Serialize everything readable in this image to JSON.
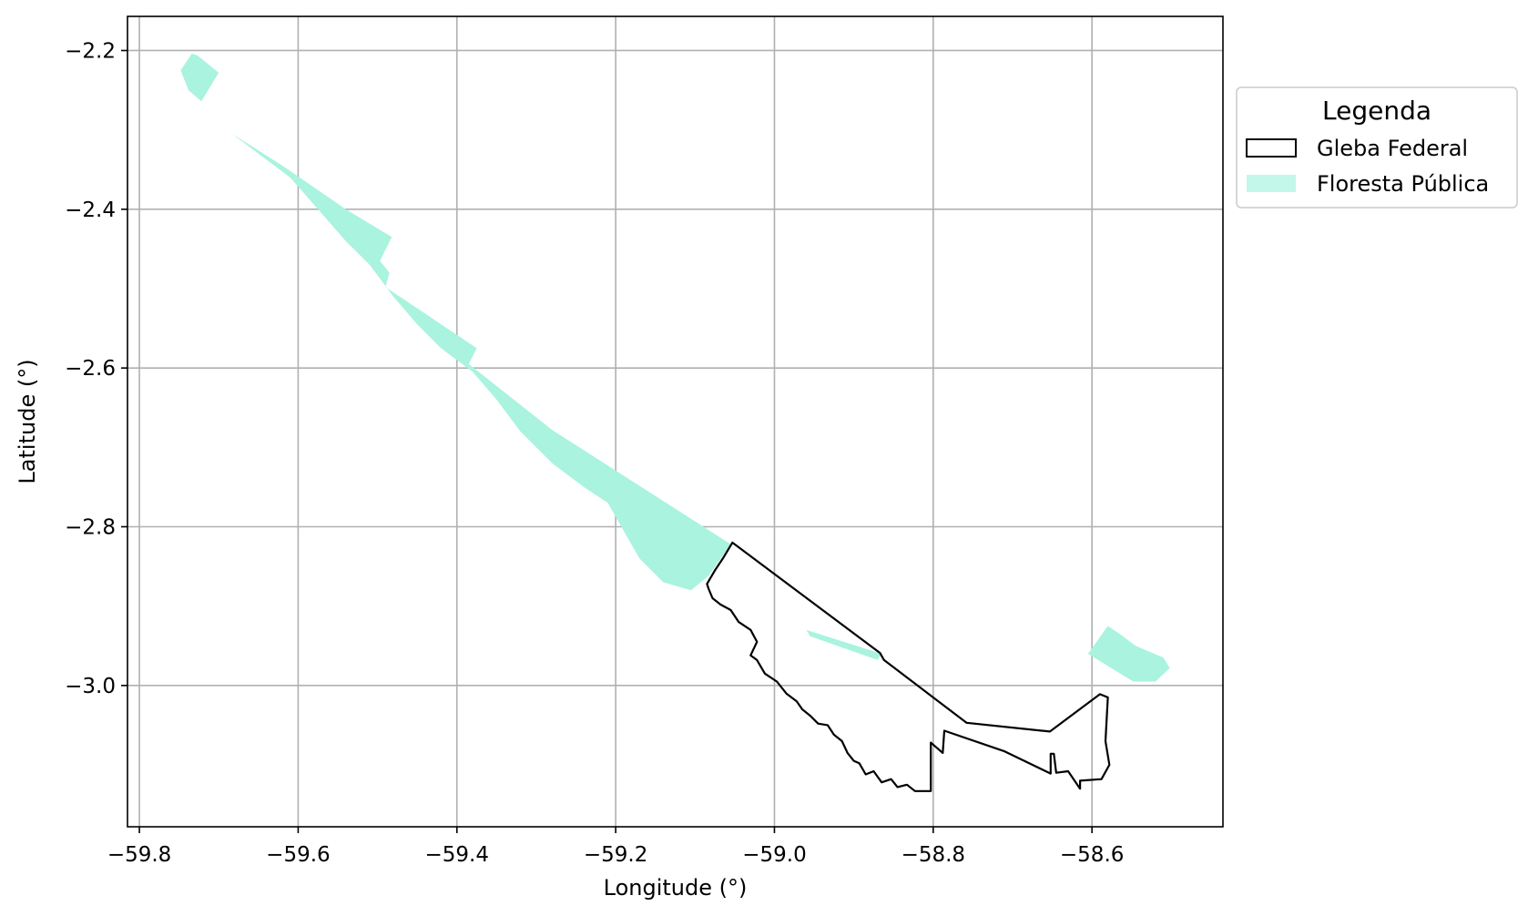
{
  "chart_data": {
    "type": "map",
    "xlabel": "Longitude (°)",
    "ylabel": "Latitude (°)",
    "xlim": [
      -59.815,
      -58.435
    ],
    "ylim": [
      -3.178,
      -2.157
    ],
    "grid": true,
    "x_ticks": [
      {
        "value": -59.8,
        "label": "−59.8"
      },
      {
        "value": -59.6,
        "label": "−59.6"
      },
      {
        "value": -59.4,
        "label": "−59.4"
      },
      {
        "value": -59.2,
        "label": "−59.2"
      },
      {
        "value": -59.0,
        "label": "−59.0"
      },
      {
        "value": -58.8,
        "label": "−58.8"
      },
      {
        "value": -58.6,
        "label": "−58.6"
      }
    ],
    "y_ticks": [
      {
        "value": -2.2,
        "label": "−2.2"
      },
      {
        "value": -2.4,
        "label": "−2.4"
      },
      {
        "value": -2.6,
        "label": "−2.6"
      },
      {
        "value": -2.8,
        "label": "−2.8"
      },
      {
        "value": -3.0,
        "label": "−3.0"
      }
    ],
    "legend": {
      "title": "Legenda",
      "placement": "outside-right-top",
      "entries": [
        {
          "label": "Gleba Federal",
          "style": "outline"
        },
        {
          "label": "Floresta Pública",
          "style": "fill"
        }
      ]
    },
    "layers": [
      {
        "name": "Floresta Pública",
        "fill": "#a9f3df",
        "edge": "none",
        "polygons": [
          [
            [
              -59.734,
              -2.204
            ],
            [
              -59.727,
              -2.206
            ],
            [
              -59.7,
              -2.228
            ],
            [
              -59.722,
              -2.264
            ],
            [
              -59.738,
              -2.25
            ],
            [
              -59.748,
              -2.225
            ]
          ],
          [
            [
              -59.683,
              -2.305
            ],
            [
              -59.62,
              -2.345
            ],
            [
              -59.54,
              -2.4
            ],
            [
              -59.482,
              -2.435
            ],
            [
              -59.497,
              -2.465
            ],
            [
              -59.485,
              -2.48
            ],
            [
              -59.49,
              -2.498
            ],
            [
              -59.375,
              -2.575
            ],
            [
              -59.385,
              -2.595
            ],
            [
              -59.28,
              -2.678
            ],
            [
              -59.055,
              -2.822
            ],
            [
              -59.083,
              -2.862
            ],
            [
              -59.105,
              -2.88
            ],
            [
              -59.14,
              -2.87
            ],
            [
              -59.17,
              -2.84
            ],
            [
              -59.19,
              -2.805
            ],
            [
              -59.21,
              -2.77
            ],
            [
              -59.24,
              -2.75
            ],
            [
              -59.28,
              -2.72
            ],
            [
              -59.32,
              -2.68
            ],
            [
              -59.35,
              -2.64
            ],
            [
              -59.38,
              -2.605
            ],
            [
              -59.42,
              -2.575
            ],
            [
              -59.45,
              -2.545
            ],
            [
              -59.48,
              -2.51
            ],
            [
              -59.51,
              -2.47
            ],
            [
              -59.54,
              -2.44
            ],
            [
              -59.575,
              -2.4
            ],
            [
              -59.61,
              -2.36
            ],
            [
              -59.65,
              -2.33
            ]
          ],
          [
            [
              -58.96,
              -2.93
            ],
            [
              -58.865,
              -2.96
            ],
            [
              -58.87,
              -2.968
            ],
            [
              -58.955,
              -2.938
            ]
          ],
          [
            [
              -58.58,
              -2.925
            ],
            [
              -58.605,
              -2.96
            ],
            [
              -58.548,
              -2.995
            ],
            [
              -58.52,
              -2.995
            ],
            [
              -58.502,
              -2.978
            ],
            [
              -58.51,
              -2.965
            ],
            [
              -58.545,
              -2.95
            ],
            [
              -58.565,
              -2.935
            ]
          ]
        ]
      },
      {
        "name": "Gleba Federal",
        "fill": "none",
        "edge": "#000000",
        "polygons": [
          [
            [
              -59.053,
              -2.82
            ],
            [
              -58.867,
              -2.959
            ],
            [
              -58.862,
              -2.968
            ],
            [
              -58.758,
              -3.047
            ],
            [
              -58.653,
              -3.058
            ],
            [
              -58.59,
              -3.011
            ],
            [
              -58.58,
              -3.015
            ],
            [
              -58.583,
              -3.07
            ],
            [
              -58.578,
              -3.1
            ],
            [
              -58.588,
              -3.118
            ],
            [
              -58.615,
              -3.12
            ],
            [
              -58.615,
              -3.13
            ],
            [
              -58.63,
              -3.108
            ],
            [
              -58.645,
              -3.11
            ],
            [
              -58.648,
              -3.086
            ],
            [
              -58.652,
              -3.086
            ],
            [
              -58.652,
              -3.111
            ],
            [
              -58.71,
              -3.083
            ],
            [
              -58.786,
              -3.057
            ],
            [
              -58.788,
              -3.085
            ],
            [
              -58.803,
              -3.072
            ],
            [
              -58.803,
              -3.133
            ],
            [
              -58.823,
              -3.133
            ],
            [
              -58.833,
              -3.125
            ],
            [
              -58.845,
              -3.128
            ],
            [
              -58.853,
              -3.118
            ],
            [
              -58.865,
              -3.122
            ],
            [
              -58.875,
              -3.108
            ],
            [
              -58.885,
              -3.112
            ],
            [
              -58.893,
              -3.098
            ],
            [
              -58.9,
              -3.095
            ],
            [
              -58.908,
              -3.085
            ],
            [
              -58.915,
              -3.07
            ],
            [
              -58.925,
              -3.062
            ],
            [
              -58.933,
              -3.05
            ],
            [
              -58.945,
              -3.048
            ],
            [
              -58.955,
              -3.038
            ],
            [
              -58.965,
              -3.03
            ],
            [
              -58.972,
              -3.02
            ],
            [
              -58.985,
              -3.01
            ],
            [
              -58.997,
              -2.995
            ],
            [
              -59.012,
              -2.985
            ],
            [
              -59.022,
              -2.968
            ],
            [
              -59.03,
              -2.962
            ],
            [
              -59.022,
              -2.945
            ],
            [
              -59.03,
              -2.93
            ],
            [
              -59.045,
              -2.92
            ],
            [
              -59.055,
              -2.905
            ],
            [
              -59.068,
              -2.898
            ],
            [
              -59.078,
              -2.89
            ],
            [
              -59.083,
              -2.878
            ],
            [
              -59.085,
              -2.872
            ],
            [
              -59.075,
              -2.855
            ],
            [
              -59.065,
              -2.84
            ]
          ]
        ]
      }
    ]
  }
}
